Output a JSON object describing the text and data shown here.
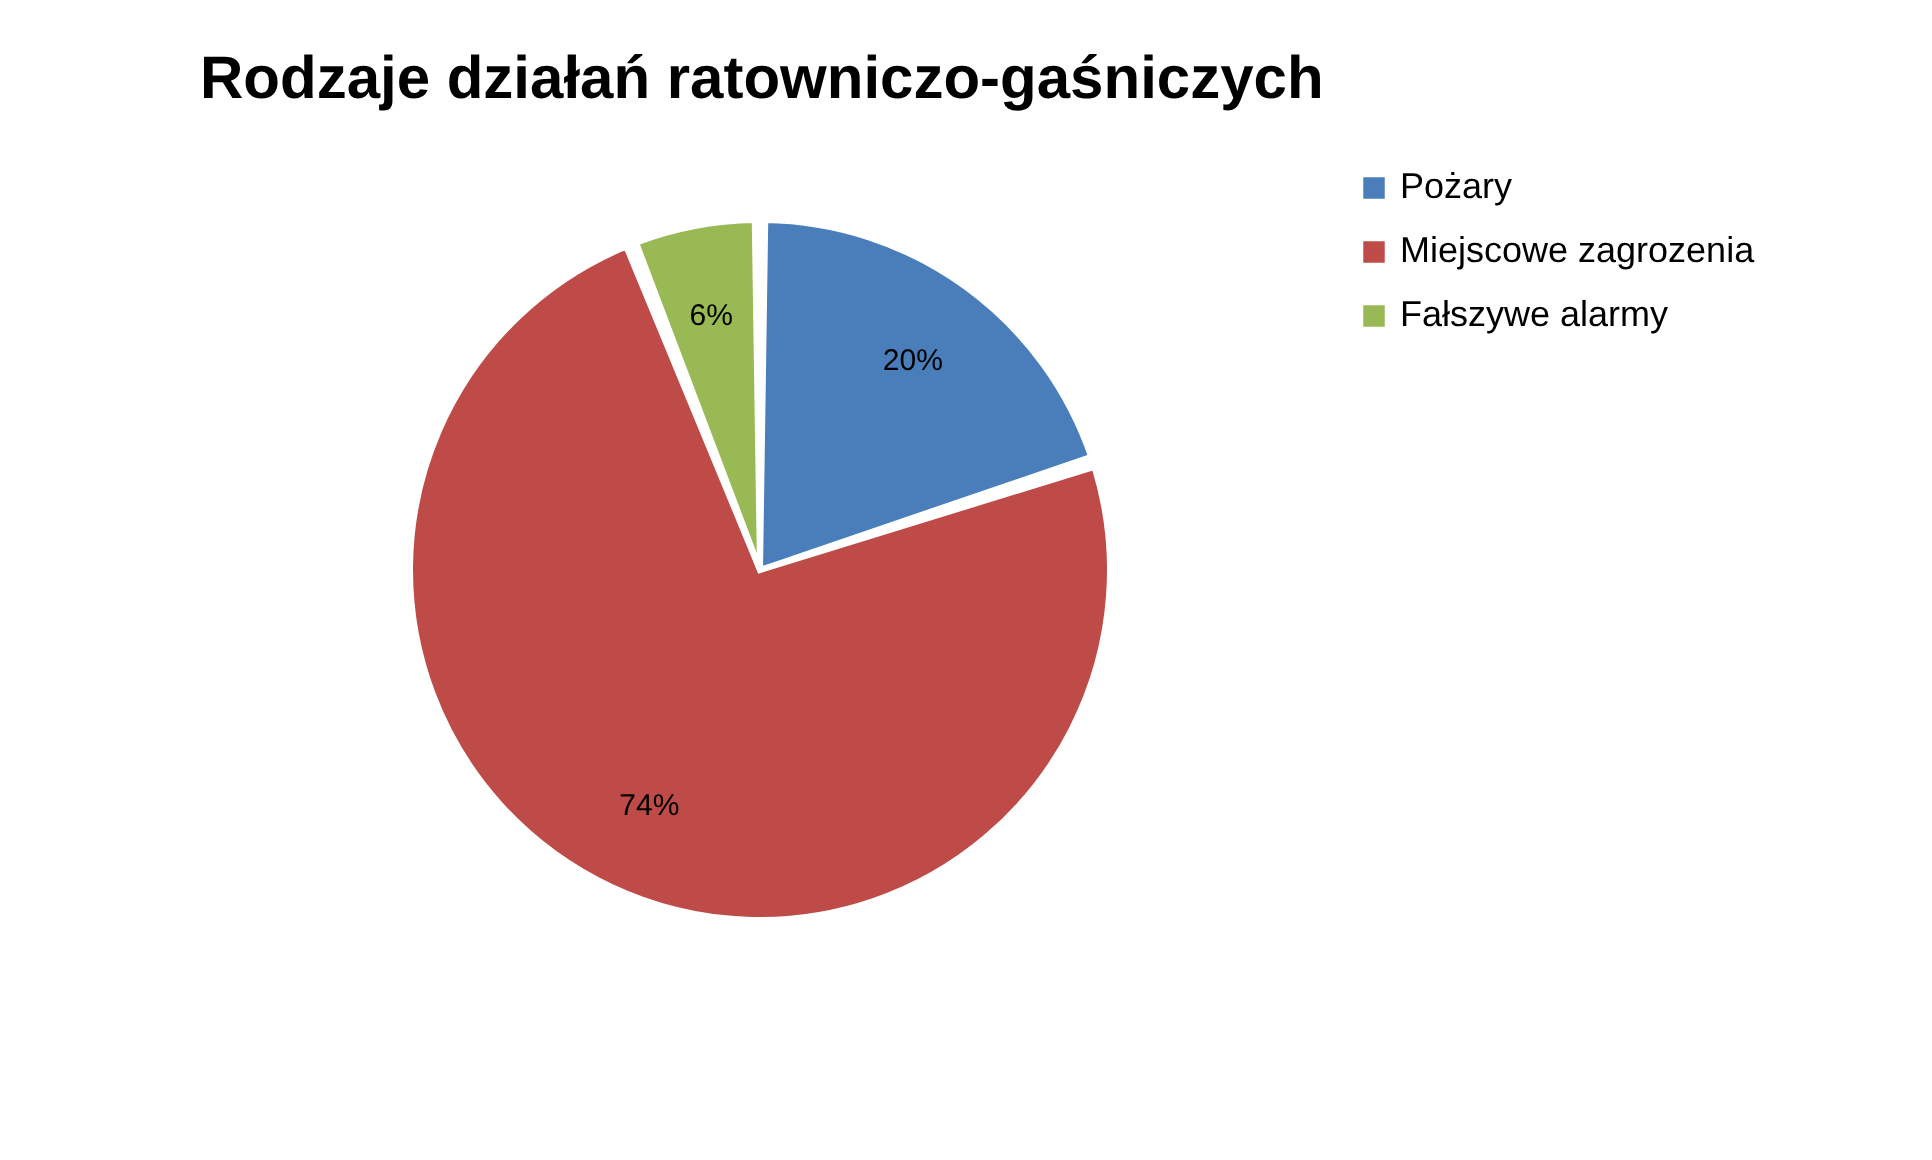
{
  "chart_data": {
    "type": "pie",
    "title": "Rodzaje działań ratowniczo-gaśniczych",
    "categories": [
      "Pożary",
      "Miejscowe zagrozenia",
      "Fałszywe alarmy"
    ],
    "values": [
      20,
      74,
      6
    ],
    "colors": [
      "#4a7ebb",
      "#be4b48",
      "#98b954"
    ],
    "value_labels": [
      "20%",
      "74%",
      "6%"
    ],
    "legend": "right"
  }
}
